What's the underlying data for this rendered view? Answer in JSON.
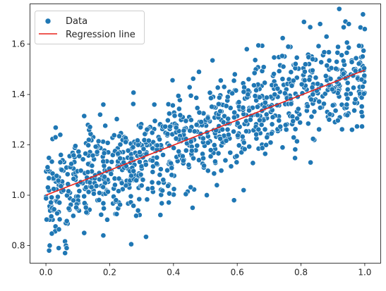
{
  "chart_data": {
    "type": "scatter",
    "title": "",
    "xlabel": "",
    "ylabel": "",
    "xlim": [
      -0.05,
      1.05
    ],
    "ylim": [
      0.73,
      1.76
    ],
    "grid": false,
    "legend_position": "top-left",
    "x_ticks": [
      {
        "value": 0.0,
        "label": "0.0"
      },
      {
        "value": 0.2,
        "label": "0.2"
      },
      {
        "value": 0.4,
        "label": "0.4"
      },
      {
        "value": 0.6,
        "label": "0.6"
      },
      {
        "value": 0.8,
        "label": "0.8"
      },
      {
        "value": 1.0,
        "label": "1.0"
      }
    ],
    "y_ticks": [
      {
        "value": 0.8,
        "label": "0.8"
      },
      {
        "value": 1.0,
        "label": "1.0"
      },
      {
        "value": 1.2,
        "label": "1.2"
      },
      {
        "value": 1.4,
        "label": "1.4"
      },
      {
        "value": 1.6,
        "label": "1.6"
      }
    ],
    "series": [
      {
        "name": "Data",
        "kind": "scatter",
        "color": "#1f77b4",
        "point_count": 1000,
        "x_range": [
          0.0,
          1.0
        ],
        "trend_intercept": 1.0,
        "trend_slope": 0.5,
        "noise_sd": 0.1,
        "highlighted_points": [
          {
            "x": 0.01,
            "y": 0.78
          },
          {
            "x": 0.04,
            "y": 0.79
          },
          {
            "x": 0.06,
            "y": 0.77
          },
          {
            "x": 0.065,
            "y": 0.79
          },
          {
            "x": 0.03,
            "y": 1.23
          },
          {
            "x": 0.045,
            "y": 1.24
          },
          {
            "x": 0.18,
            "y": 0.84
          },
          {
            "x": 0.12,
            "y": 0.85
          },
          {
            "x": 0.18,
            "y": 1.36
          },
          {
            "x": 0.17,
            "y": 1.32
          },
          {
            "x": 0.34,
            "y": 1.36
          },
          {
            "x": 0.46,
            "y": 0.95
          },
          {
            "x": 0.48,
            "y": 1.49
          },
          {
            "x": 0.59,
            "y": 0.98
          },
          {
            "x": 0.62,
            "y": 1.02
          },
          {
            "x": 0.63,
            "y": 1.58
          },
          {
            "x": 0.76,
            "y": 1.59
          },
          {
            "x": 0.83,
            "y": 1.13
          },
          {
            "x": 0.86,
            "y": 1.68
          },
          {
            "x": 0.92,
            "y": 1.74
          },
          {
            "x": 0.95,
            "y": 1.68
          },
          {
            "x": 1.0,
            "y": 1.66
          },
          {
            "x": 0.99,
            "y": 1.33
          },
          {
            "x": 0.96,
            "y": 1.26
          },
          {
            "x": 0.88,
            "y": 1.63
          }
        ]
      },
      {
        "name": "Regression line",
        "kind": "line",
        "color": "#e8221b",
        "x": [
          0.0,
          1.0
        ],
        "y": [
          1.0,
          1.497
        ]
      }
    ]
  }
}
